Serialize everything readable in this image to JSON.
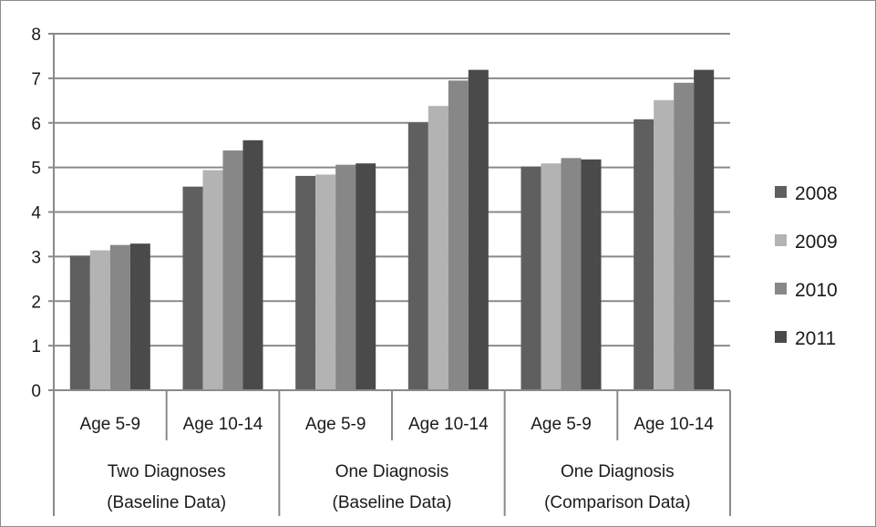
{
  "chart_data": {
    "type": "bar",
    "title": "",
    "xlabel": "",
    "ylabel": "",
    "ylim": [
      0,
      8
    ],
    "yticks": [
      0,
      1,
      2,
      3,
      4,
      5,
      6,
      7,
      8
    ],
    "grid": "horizontal",
    "legend_position": "right",
    "groups": [
      {
        "label_line1": "Two Diagnoses",
        "label_line2": "(Baseline Data)",
        "categories": [
          "Age 5-9",
          "Age 10-14"
        ]
      },
      {
        "label_line1": "One Diagnosis",
        "label_line2": "(Baseline Data)",
        "categories": [
          "Age 5-9",
          "Age 10-14"
        ]
      },
      {
        "label_line1": "One Diagnosis",
        "label_line2": "(Comparison Data)",
        "categories": [
          "Age 5-9",
          "Age 10-14"
        ]
      }
    ],
    "categories": [
      "Age 5-9",
      "Age 10-14",
      "Age 5-9",
      "Age 10-14",
      "Age 5-9",
      "Age 10-14"
    ],
    "series": [
      {
        "name": "2008",
        "color": "#5f5f5f",
        "values": [
          3.02,
          4.57,
          4.81,
          6.01,
          5.02,
          6.08
        ]
      },
      {
        "name": "2009",
        "color": "#b3b3b3",
        "values": [
          3.14,
          4.94,
          4.84,
          6.38,
          5.09,
          6.51
        ]
      },
      {
        "name": "2010",
        "color": "#878787",
        "values": [
          3.26,
          5.38,
          5.06,
          6.95,
          5.21,
          6.9
        ]
      },
      {
        "name": "2011",
        "color": "#4a4a4a",
        "values": [
          3.29,
          5.61,
          5.09,
          7.19,
          5.18,
          7.19
        ]
      }
    ]
  }
}
